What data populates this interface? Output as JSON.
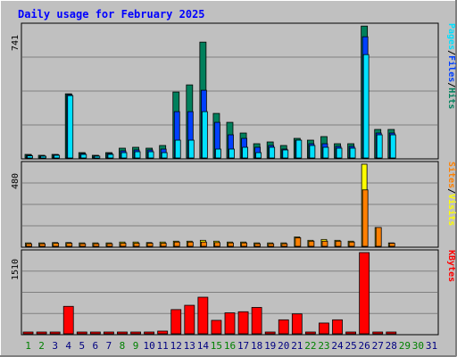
{
  "chart_data": {
    "type": "bar",
    "title": "Daily usage for February 2025",
    "colors": {
      "hits": "#00805c",
      "files": "#0040ff",
      "pages": "#00e0ff",
      "visits": "#ffff00",
      "sites": "#ff8000",
      "kbytes": "#ff0000",
      "background": "#c0c0c0",
      "plot_bg": "#c0c0c0",
      "title": "#0000ff",
      "weekday_label": "#000080",
      "weekend_label": "#008000"
    },
    "days": [
      {
        "label": "1",
        "weekend": true
      },
      {
        "label": "2",
        "weekend": true
      },
      {
        "label": "3",
        "weekend": false
      },
      {
        "label": "4",
        "weekend": false
      },
      {
        "label": "5",
        "weekend": false
      },
      {
        "label": "6",
        "weekend": false
      },
      {
        "label": "7",
        "weekend": false
      },
      {
        "label": "8",
        "weekend": true
      },
      {
        "label": "9",
        "weekend": true
      },
      {
        "label": "10",
        "weekend": false
      },
      {
        "label": "11",
        "weekend": false
      },
      {
        "label": "12",
        "weekend": false
      },
      {
        "label": "13",
        "weekend": false
      },
      {
        "label": "14",
        "weekend": false
      },
      {
        "label": "15",
        "weekend": true
      },
      {
        "label": "16",
        "weekend": true
      },
      {
        "label": "17",
        "weekend": false
      },
      {
        "label": "18",
        "weekend": false
      },
      {
        "label": "19",
        "weekend": false
      },
      {
        "label": "20",
        "weekend": false
      },
      {
        "label": "21",
        "weekend": false
      },
      {
        "label": "22",
        "weekend": true
      },
      {
        "label": "23",
        "weekend": true
      },
      {
        "label": "24",
        "weekend": false
      },
      {
        "label": "25",
        "weekend": false
      },
      {
        "label": "26",
        "weekend": false
      },
      {
        "label": "27",
        "weekend": false
      },
      {
        "label": "28",
        "weekend": false
      },
      {
        "label": "29",
        "weekend": true
      },
      {
        "label": "30",
        "weekend": true
      },
      {
        "label": "31",
        "weekend": false
      }
    ],
    "panels": [
      {
        "id": "top",
        "ymax": 741,
        "ymax_label": "741",
        "legend": [
          {
            "text": "Pages",
            "color": "#00e0ff"
          },
          {
            "text": "/",
            "color": "#000000"
          },
          {
            "text": "Files",
            "color": "#0040ff"
          },
          {
            "text": "/",
            "color": "#000000"
          },
          {
            "text": "Hits",
            "color": "#00805c"
          }
        ],
        "series": [
          {
            "name": "Hits",
            "color": "#00805c",
            "values": [
              20,
              15,
              20,
              360,
              30,
              15,
              30,
              55,
              60,
              55,
              70,
              370,
              410,
              650,
              250,
              200,
              140,
              80,
              90,
              70,
              110,
              100,
              120,
              80,
              80,
              740,
              160,
              160,
              0,
              0,
              0
            ]
          },
          {
            "name": "Files",
            "color": "#0040ff",
            "values": [
              15,
              10,
              18,
              355,
              25,
              12,
              25,
              40,
              45,
              45,
              50,
              260,
              260,
              380,
              200,
              130,
              110,
              60,
              70,
              50,
              100,
              80,
              80,
              65,
              65,
              680,
              140,
              140,
              0,
              0,
              0
            ]
          },
          {
            "name": "Pages",
            "color": "#00e0ff",
            "values": [
              12,
              8,
              15,
              350,
              20,
              10,
              20,
              30,
              35,
              35,
              30,
              100,
              100,
              260,
              50,
              50,
              60,
              30,
              60,
              45,
              100,
              70,
              60,
              55,
              55,
              580,
              130,
              130,
              0,
              0,
              0
            ]
          }
        ]
      },
      {
        "id": "middle",
        "ymax": 480,
        "ymax_label": "480",
        "legend": [
          {
            "text": "Sites",
            "color": "#ff8000"
          },
          {
            "text": "/",
            "color": "#000000"
          },
          {
            "text": "Visits",
            "color": "#ffff00"
          }
        ],
        "series": [
          {
            "name": "Visits",
            "color": "#ffff00",
            "values": [
              20,
              20,
              22,
              22,
              20,
              20,
              20,
              25,
              25,
              22,
              25,
              30,
              30,
              35,
              30,
              25,
              25,
              20,
              20,
              20,
              55,
              35,
              40,
              35,
              30,
              480,
              110,
              20,
              0,
              0,
              0
            ]
          },
          {
            "name": "Sites",
            "color": "#ff8000",
            "values": [
              15,
              15,
              18,
              18,
              15,
              15,
              15,
              18,
              18,
              18,
              18,
              25,
              25,
              25,
              22,
              20,
              20,
              15,
              15,
              15,
              50,
              30,
              30,
              30,
              25,
              330,
              110,
              18,
              0,
              0,
              0
            ]
          }
        ]
      },
      {
        "id": "bottom",
        "ymax": 1510,
        "ymax_label": "1510",
        "legend": [
          {
            "text": "KBytes",
            "color": "#ff0000"
          }
        ],
        "series": [
          {
            "name": "KBytes",
            "color": "#ff0000",
            "values": [
              20,
              20,
              20,
              510,
              20,
              20,
              20,
              20,
              20,
              20,
              50,
              450,
              530,
              680,
              250,
              390,
              410,
              490,
              20,
              260,
              370,
              20,
              200,
              260,
              20,
              1510,
              30,
              20,
              0,
              0,
              0
            ]
          }
        ]
      }
    ]
  }
}
